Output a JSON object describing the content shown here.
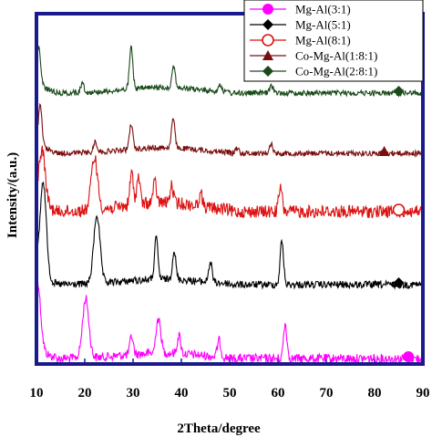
{
  "chart_data": {
    "type": "line",
    "xlabel": "2Theta/degree",
    "ylabel": "Intensity/(a.u.)",
    "xlim": [
      10,
      90
    ],
    "x_ticks": [
      10,
      20,
      30,
      40,
      50,
      60,
      70,
      80,
      90
    ],
    "grid": false,
    "legend_position": "top-right",
    "series": [
      {
        "name": "Mg-Al(3:1)",
        "color": "#ff00ff",
        "marker": "circle-filled",
        "marker_x": 87,
        "baseline": 0,
        "peaks": [
          [
            10.2,
            70
          ],
          [
            20.2,
            65
          ],
          [
            29.7,
            20
          ],
          [
            35.0,
            30
          ],
          [
            35.6,
            22
          ],
          [
            39.5,
            20
          ],
          [
            47.8,
            18
          ],
          [
            61.5,
            38
          ]
        ]
      },
      {
        "name": "Mg-Al(5:1)",
        "color": "#000000",
        "marker": "diamond-filled",
        "marker_x": 85,
        "baseline": 1,
        "peaks": [
          [
            11.4,
            105
          ],
          [
            22.5,
            75
          ],
          [
            34.8,
            45
          ],
          [
            38.5,
            32
          ],
          [
            46.0,
            22
          ],
          [
            60.8,
            48
          ]
        ]
      },
      {
        "name": "Mg-Al(8:1)",
        "color": "#dd1111",
        "marker": "circle-open",
        "marker_x": 85,
        "baseline": 2,
        "peaks": [
          [
            11.2,
            58
          ],
          [
            22.0,
            58
          ],
          [
            29.7,
            35
          ],
          [
            31.1,
            30
          ],
          [
            34.5,
            22
          ],
          [
            38.0,
            18
          ],
          [
            44.0,
            14
          ],
          [
            60.5,
            26
          ]
        ]
      },
      {
        "name": "Co-Mg-Al(1:8:1)",
        "color": "#7a0e0e",
        "marker": "triangle-filled",
        "marker_x": 82,
        "baseline": 3,
        "peaks": [
          [
            10.8,
            40
          ],
          [
            22.2,
            12
          ],
          [
            29.6,
            28
          ],
          [
            38.3,
            32
          ],
          [
            51.5,
            6
          ],
          [
            58.6,
            10
          ]
        ]
      },
      {
        "name": "Co-Mg-Al(2:8:1)",
        "color": "#1a4a1a",
        "marker": "diamond-filled",
        "marker_x": 85,
        "baseline": 4,
        "peaks": [
          [
            10.5,
            36
          ],
          [
            19.5,
            10
          ],
          [
            29.6,
            45
          ],
          [
            38.4,
            24
          ],
          [
            48.0,
            8
          ],
          [
            58.7,
            8
          ]
        ]
      }
    ]
  }
}
